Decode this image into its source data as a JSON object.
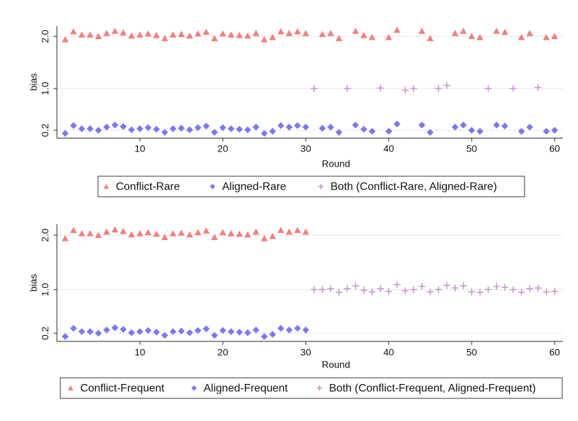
{
  "chart_data": [
    {
      "type": "scatter",
      "x_label": "Round",
      "y_label": "bias",
      "xlim": [
        0,
        61
      ],
      "ylim": [
        0.05,
        2.2
      ],
      "xticks": [
        10,
        20,
        30,
        40,
        50,
        60
      ],
      "yticks": [
        0.2,
        {
          "value": 1,
          "label": "1.0"
        },
        {
          "value": 2,
          "label": "2.0"
        }
      ],
      "grid": true,
      "series": [
        {
          "name": "Conflict-Rare",
          "color": "#f27f7f",
          "marker": "triangle",
          "x": [
            1,
            2,
            3,
            4,
            5,
            6,
            7,
            8,
            9,
            10,
            11,
            12,
            13,
            14,
            15,
            16,
            17,
            18,
            19,
            20,
            21,
            22,
            23,
            24,
            25,
            26,
            27,
            28,
            29,
            30,
            32,
            33,
            34,
            36,
            37,
            38,
            40,
            41,
            44,
            45,
            48,
            49,
            50,
            51,
            53,
            54,
            56,
            57,
            59,
            60
          ],
          "values": [
            1.94,
            2.09,
            2.03,
            2.03,
            2.0,
            2.06,
            2.1,
            2.07,
            2.01,
            2.03,
            2.05,
            2.02,
            1.96,
            2.03,
            2.04,
            2.01,
            2.05,
            2.08,
            1.96,
            2.05,
            2.03,
            2.02,
            2.01,
            2.06,
            1.94,
            1.98,
            2.09,
            2.06,
            2.09,
            2.06,
            2.04,
            2.06,
            1.96,
            2.1,
            2.02,
            1.98,
            1.98,
            2.12,
            2.1,
            1.96,
            2.06,
            2.1,
            2.0,
            1.98,
            2.1,
            2.08,
            1.98,
            2.06,
            1.98,
            2.0
          ]
        },
        {
          "name": "Aligned-Rare",
          "color": "#7b79f2",
          "marker": "diamond",
          "x": [
            1,
            2,
            3,
            4,
            5,
            6,
            7,
            8,
            9,
            10,
            11,
            12,
            13,
            14,
            15,
            16,
            17,
            18,
            19,
            20,
            21,
            22,
            23,
            24,
            25,
            26,
            27,
            28,
            29,
            30,
            32,
            33,
            34,
            36,
            37,
            38,
            40,
            41,
            44,
            45,
            48,
            49,
            50,
            51,
            53,
            54,
            56,
            57,
            59,
            60
          ],
          "values": [
            0.14,
            0.29,
            0.23,
            0.23,
            0.2,
            0.26,
            0.3,
            0.27,
            0.21,
            0.23,
            0.25,
            0.22,
            0.16,
            0.23,
            0.24,
            0.21,
            0.25,
            0.28,
            0.16,
            0.25,
            0.23,
            0.22,
            0.21,
            0.26,
            0.14,
            0.18,
            0.29,
            0.26,
            0.29,
            0.26,
            0.24,
            0.26,
            0.16,
            0.3,
            0.22,
            0.18,
            0.18,
            0.32,
            0.3,
            0.16,
            0.26,
            0.3,
            0.2,
            0.18,
            0.3,
            0.28,
            0.18,
            0.26,
            0.18,
            0.2
          ]
        },
        {
          "name": "Both (Conflict-Rare, Aligned-Rare)",
          "color": "#c58fcf",
          "marker": "plus",
          "x": [
            31,
            35,
            39,
            42,
            43,
            46,
            47,
            52,
            55,
            58
          ],
          "values": [
            1.0,
            1.0,
            1.01,
            0.97,
            1.0,
            1.0,
            1.06,
            1.0,
            1.0,
            1.02
          ]
        }
      ]
    },
    {
      "type": "scatter",
      "x_label": "Round",
      "y_label": "bias",
      "xlim": [
        0,
        61
      ],
      "ylim": [
        0.05,
        2.2
      ],
      "xticks": [
        10,
        20,
        30,
        40,
        50,
        60
      ],
      "yticks": [
        0.2,
        {
          "value": 1,
          "label": "1.0"
        },
        {
          "value": 2,
          "label": "2.0"
        }
      ],
      "grid": true,
      "series": [
        {
          "name": "Conflict-Frequent",
          "color": "#f27f7f",
          "marker": "triangle",
          "x": [
            1,
            2,
            3,
            4,
            5,
            6,
            7,
            8,
            9,
            10,
            11,
            12,
            13,
            14,
            15,
            16,
            17,
            18,
            19,
            20,
            21,
            22,
            23,
            24,
            25,
            26,
            27,
            28,
            29,
            30
          ],
          "values": [
            1.94,
            2.09,
            2.03,
            2.03,
            2.0,
            2.06,
            2.1,
            2.07,
            2.01,
            2.03,
            2.05,
            2.02,
            1.96,
            2.03,
            2.04,
            2.01,
            2.05,
            2.08,
            1.96,
            2.05,
            2.03,
            2.02,
            2.01,
            2.06,
            1.94,
            1.98,
            2.09,
            2.06,
            2.09,
            2.06
          ]
        },
        {
          "name": "Aligned-Frequent",
          "color": "#7b79f2",
          "marker": "diamond",
          "x": [
            1,
            2,
            3,
            4,
            5,
            6,
            7,
            8,
            9,
            10,
            11,
            12,
            13,
            14,
            15,
            16,
            17,
            18,
            19,
            20,
            21,
            22,
            23,
            24,
            25,
            26,
            27,
            28,
            29,
            30
          ],
          "values": [
            0.14,
            0.29,
            0.23,
            0.23,
            0.2,
            0.26,
            0.3,
            0.27,
            0.21,
            0.23,
            0.25,
            0.22,
            0.16,
            0.23,
            0.24,
            0.21,
            0.25,
            0.28,
            0.16,
            0.25,
            0.23,
            0.22,
            0.21,
            0.26,
            0.14,
            0.18,
            0.29,
            0.26,
            0.29,
            0.26
          ]
        },
        {
          "name": "Both (Conflict-Frequent, Aligned-Frequent)",
          "color": "#c58fcf",
          "marker": "plus",
          "x": [
            31,
            32,
            33,
            34,
            35,
            36,
            37,
            38,
            39,
            40,
            41,
            42,
            43,
            44,
            45,
            46,
            47,
            48,
            49,
            50,
            51,
            52,
            53,
            54,
            55,
            56,
            57,
            58,
            59,
            60
          ],
          "values": [
            1.0,
            1.0,
            1.02,
            0.95,
            1.02,
            1.07,
            0.99,
            0.96,
            1.02,
            0.97,
            1.09,
            0.98,
            1.0,
            1.06,
            0.96,
            1.0,
            1.08,
            1.03,
            1.07,
            0.96,
            0.95,
            1.0,
            1.06,
            1.04,
            1.0,
            0.95,
            1.02,
            1.03,
            0.96,
            0.97
          ]
        }
      ]
    }
  ]
}
